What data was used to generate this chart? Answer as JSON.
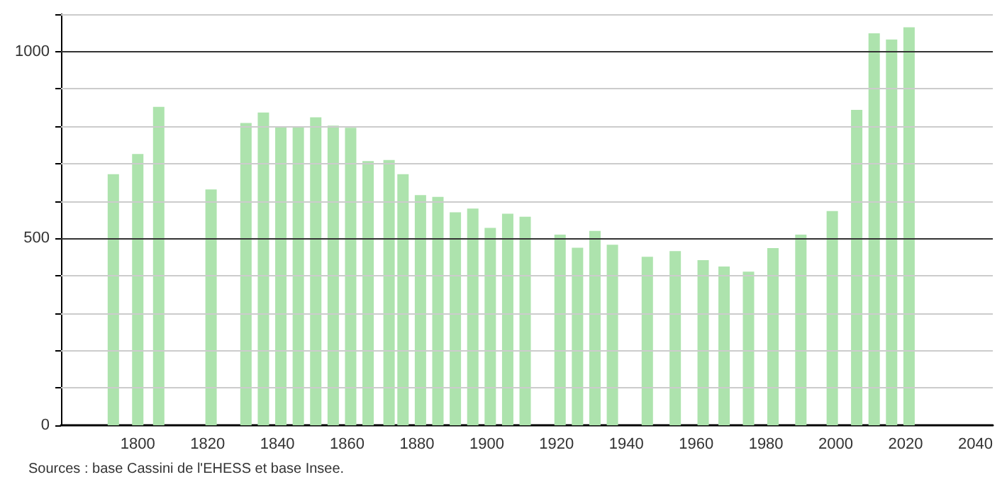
{
  "chart_data": {
    "type": "bar",
    "x": [
      1793,
      1800,
      1806,
      1821,
      1831,
      1836,
      1841,
      1846,
      1851,
      1856,
      1861,
      1866,
      1872,
      1876,
      1881,
      1886,
      1891,
      1896,
      1901,
      1906,
      1911,
      1921,
      1926,
      1931,
      1936,
      1946,
      1954,
      1962,
      1968,
      1975,
      1982,
      1990,
      1999,
      2006,
      2011,
      2016,
      2021
    ],
    "values": [
      672,
      726,
      852,
      631,
      809,
      837,
      798,
      798,
      824,
      802,
      796,
      707,
      710,
      672,
      616,
      611,
      570,
      580,
      528,
      566,
      558,
      510,
      475,
      520,
      483,
      451,
      466,
      442,
      425,
      411,
      474,
      510,
      573,
      844,
      1049,
      1032,
      1065
    ],
    "color": "#ade3ad",
    "xlim": [
      1778,
      2045
    ],
    "xticks": [
      1800,
      1820,
      1840,
      1860,
      1880,
      1900,
      1920,
      1940,
      1960,
      1980,
      2000,
      2020,
      2040
    ],
    "ylim": [
      0,
      1100
    ],
    "yticks": [
      0,
      {
        "value": 100,
        "label": null
      },
      {
        "value": 200,
        "label": null
      },
      {
        "value": 300,
        "label": null
      },
      {
        "value": 400,
        "label": null
      },
      500,
      {
        "value": 600,
        "label": null
      },
      {
        "value": 700,
        "label": null
      },
      {
        "value": 800,
        "label": null
      },
      {
        "value": 900,
        "label": null
      },
      1000,
      {
        "value": 1100,
        "label": null
      }
    ],
    "grid": "y",
    "annotations": [
      "Sources : base Cassini de l'EHESS et base Insee."
    ]
  }
}
